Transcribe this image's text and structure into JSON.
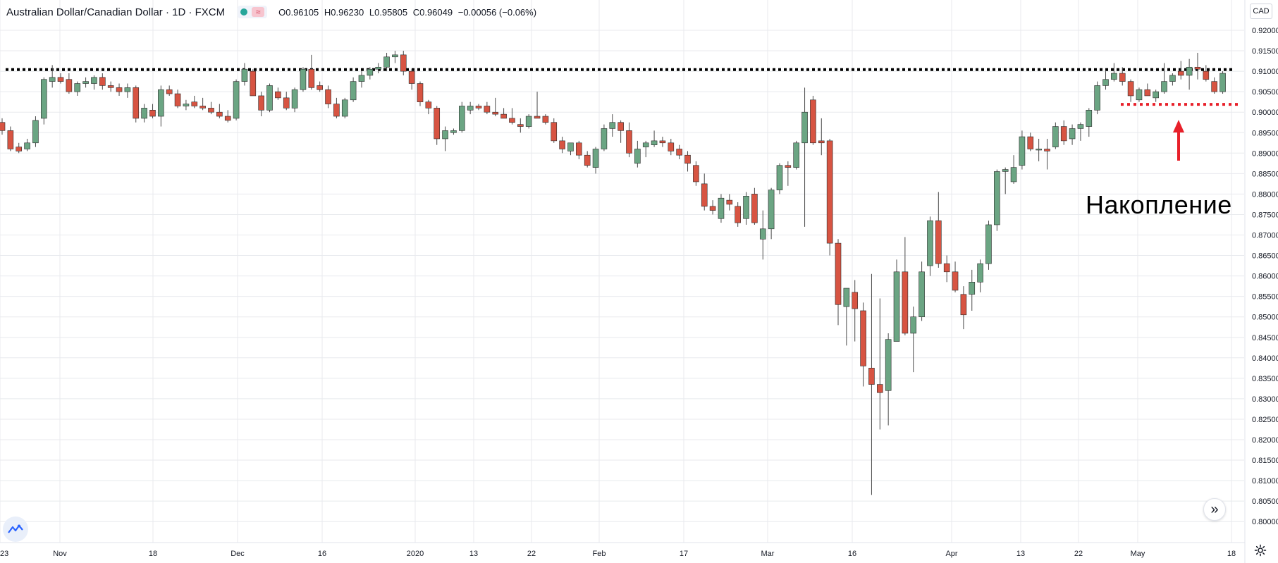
{
  "header": {
    "symbol_title": "Australian Dollar/Canadian Dollar · 1D · FXCM",
    "ohlc": {
      "open": "O0.96105",
      "high": "H0.96230",
      "low": "L0.95805",
      "close": "C0.96049",
      "change": "−0.00056 (−0.06%)"
    }
  },
  "currency_badge": "CAD",
  "annotation": "Накопление",
  "colors": {
    "up": "#6ba583",
    "down": "#d75442",
    "wick": "#4a4a4a",
    "grid": "#e8eaee",
    "resistance": "#000000",
    "support": "#e8202a",
    "arrow": "#e8202a"
  },
  "icons": {
    "logo": "tradingview-logo-icon",
    "scroll": "double-chevron-right-icon",
    "settings": "gear-icon"
  },
  "chart_data": {
    "type": "candlestick",
    "title": "Australian Dollar/Canadian Dollar · 1D · FXCM",
    "ylim": [
      0.797,
      0.926
    ],
    "y_ticks": [
      "0.92000",
      "0.91500",
      "0.91000",
      "0.90500",
      "0.90000",
      "0.89500",
      "0.89000",
      "0.88500",
      "0.88000",
      "0.87500",
      "0.87000",
      "0.86500",
      "0.86000",
      "0.85500",
      "0.85000",
      "0.84500",
      "0.84000",
      "0.83500",
      "0.83000",
      "0.82500",
      "0.82000",
      "0.81500",
      "0.81000",
      "0.80500",
      "0.80000"
    ],
    "x_ticks": [
      "23",
      "Nov",
      "18",
      "Dec",
      "16",
      "2020",
      "13",
      "22",
      "Feb",
      "17",
      "Mar",
      "16",
      "Apr",
      "13",
      "22",
      "May",
      "18"
    ],
    "grid": true,
    "levels": [
      {
        "name": "resistance",
        "value": 0.9104,
        "style": "dotted"
      },
      {
        "name": "support",
        "value": 0.9019,
        "style": "dotted"
      }
    ],
    "candles": [
      {
        "o": 0.8975,
        "h": 0.8985,
        "l": 0.8945,
        "c": 0.8955
      },
      {
        "o": 0.8955,
        "h": 0.8965,
        "l": 0.8905,
        "c": 0.891
      },
      {
        "o": 0.8915,
        "h": 0.8925,
        "l": 0.89,
        "c": 0.8905
      },
      {
        "o": 0.891,
        "h": 0.8935,
        "l": 0.8905,
        "c": 0.8925
      },
      {
        "o": 0.8925,
        "h": 0.899,
        "l": 0.8915,
        "c": 0.898
      },
      {
        "o": 0.8985,
        "h": 0.9085,
        "l": 0.897,
        "c": 0.908
      },
      {
        "o": 0.9075,
        "h": 0.9115,
        "l": 0.906,
        "c": 0.9085
      },
      {
        "o": 0.9085,
        "h": 0.9095,
        "l": 0.907,
        "c": 0.9075
      },
      {
        "o": 0.908,
        "h": 0.9095,
        "l": 0.9045,
        "c": 0.905
      },
      {
        "o": 0.905,
        "h": 0.9075,
        "l": 0.904,
        "c": 0.907
      },
      {
        "o": 0.907,
        "h": 0.9085,
        "l": 0.906,
        "c": 0.9075
      },
      {
        "o": 0.907,
        "h": 0.909,
        "l": 0.9055,
        "c": 0.9085
      },
      {
        "o": 0.9085,
        "h": 0.9095,
        "l": 0.9055,
        "c": 0.9065
      },
      {
        "o": 0.9065,
        "h": 0.9075,
        "l": 0.905,
        "c": 0.906
      },
      {
        "o": 0.906,
        "h": 0.907,
        "l": 0.904,
        "c": 0.905
      },
      {
        "o": 0.905,
        "h": 0.907,
        "l": 0.9035,
        "c": 0.906
      },
      {
        "o": 0.906,
        "h": 0.9065,
        "l": 0.8975,
        "c": 0.8985
      },
      {
        "o": 0.8985,
        "h": 0.902,
        "l": 0.8975,
        "c": 0.901
      },
      {
        "o": 0.9005,
        "h": 0.902,
        "l": 0.8985,
        "c": 0.899
      },
      {
        "o": 0.899,
        "h": 0.9065,
        "l": 0.8965,
        "c": 0.9055
      },
      {
        "o": 0.9055,
        "h": 0.9065,
        "l": 0.904,
        "c": 0.9045
      },
      {
        "o": 0.9045,
        "h": 0.9055,
        "l": 0.901,
        "c": 0.9015
      },
      {
        "o": 0.9015,
        "h": 0.903,
        "l": 0.9005,
        "c": 0.902
      },
      {
        "o": 0.9025,
        "h": 0.904,
        "l": 0.901,
        "c": 0.9015
      },
      {
        "o": 0.9015,
        "h": 0.9035,
        "l": 0.9005,
        "c": 0.901
      },
      {
        "o": 0.901,
        "h": 0.9025,
        "l": 0.8995,
        "c": 0.9
      },
      {
        "o": 0.9,
        "h": 0.902,
        "l": 0.8985,
        "c": 0.899
      },
      {
        "o": 0.899,
        "h": 0.9005,
        "l": 0.8975,
        "c": 0.898
      },
      {
        "o": 0.8985,
        "h": 0.908,
        "l": 0.898,
        "c": 0.9075
      },
      {
        "o": 0.9075,
        "h": 0.912,
        "l": 0.9065,
        "c": 0.9105
      },
      {
        "o": 0.91,
        "h": 0.9105,
        "l": 0.904,
        "c": 0.904
      },
      {
        "o": 0.904,
        "h": 0.905,
        "l": 0.899,
        "c": 0.9005
      },
      {
        "o": 0.9005,
        "h": 0.907,
        "l": 0.9,
        "c": 0.9065
      },
      {
        "o": 0.905,
        "h": 0.906,
        "l": 0.903,
        "c": 0.9035
      },
      {
        "o": 0.9035,
        "h": 0.905,
        "l": 0.9005,
        "c": 0.901
      },
      {
        "o": 0.901,
        "h": 0.906,
        "l": 0.9,
        "c": 0.9055
      },
      {
        "o": 0.9055,
        "h": 0.911,
        "l": 0.905,
        "c": 0.9105
      },
      {
        "o": 0.9105,
        "h": 0.914,
        "l": 0.9055,
        "c": 0.906
      },
      {
        "o": 0.9065,
        "h": 0.9075,
        "l": 0.905,
        "c": 0.9055
      },
      {
        "o": 0.9055,
        "h": 0.9065,
        "l": 0.901,
        "c": 0.902
      },
      {
        "o": 0.902,
        "h": 0.9035,
        "l": 0.8985,
        "c": 0.899
      },
      {
        "o": 0.899,
        "h": 0.9035,
        "l": 0.8985,
        "c": 0.903
      },
      {
        "o": 0.903,
        "h": 0.9085,
        "l": 0.9025,
        "c": 0.9075
      },
      {
        "o": 0.9075,
        "h": 0.91,
        "l": 0.906,
        "c": 0.909
      },
      {
        "o": 0.909,
        "h": 0.911,
        "l": 0.908,
        "c": 0.9105
      },
      {
        "o": 0.9105,
        "h": 0.912,
        "l": 0.9095,
        "c": 0.911
      },
      {
        "o": 0.911,
        "h": 0.9145,
        "l": 0.91,
        "c": 0.9135
      },
      {
        "o": 0.9135,
        "h": 0.915,
        "l": 0.912,
        "c": 0.914
      },
      {
        "o": 0.914,
        "h": 0.915,
        "l": 0.909,
        "c": 0.91
      },
      {
        "o": 0.91,
        "h": 0.9105,
        "l": 0.9055,
        "c": 0.907
      },
      {
        "o": 0.907,
        "h": 0.9075,
        "l": 0.9015,
        "c": 0.9025
      },
      {
        "o": 0.9025,
        "h": 0.903,
        "l": 0.8995,
        "c": 0.901
      },
      {
        "o": 0.901,
        "h": 0.9015,
        "l": 0.892,
        "c": 0.8935
      },
      {
        "o": 0.8935,
        "h": 0.8965,
        "l": 0.8905,
        "c": 0.8955
      },
      {
        "o": 0.895,
        "h": 0.896,
        "l": 0.8945,
        "c": 0.8955
      },
      {
        "o": 0.8955,
        "h": 0.9025,
        "l": 0.895,
        "c": 0.9015
      },
      {
        "o": 0.9005,
        "h": 0.9025,
        "l": 0.8995,
        "c": 0.9015
      },
      {
        "o": 0.9015,
        "h": 0.902,
        "l": 0.9005,
        "c": 0.901
      },
      {
        "o": 0.9015,
        "h": 0.9025,
        "l": 0.8995,
        "c": 0.9
      },
      {
        "o": 0.9,
        "h": 0.9035,
        "l": 0.899,
        "c": 0.8995
      },
      {
        "o": 0.8995,
        "h": 0.901,
        "l": 0.8985,
        "c": 0.8985
      },
      {
        "o": 0.8985,
        "h": 0.901,
        "l": 0.897,
        "c": 0.8975
      },
      {
        "o": 0.897,
        "h": 0.8985,
        "l": 0.895,
        "c": 0.8965
      },
      {
        "o": 0.8965,
        "h": 0.8995,
        "l": 0.896,
        "c": 0.899
      },
      {
        "o": 0.899,
        "h": 0.905,
        "l": 0.8985,
        "c": 0.8985
      },
      {
        "o": 0.899,
        "h": 0.8995,
        "l": 0.897,
        "c": 0.8975
      },
      {
        "o": 0.8975,
        "h": 0.8985,
        "l": 0.8925,
        "c": 0.893
      },
      {
        "o": 0.893,
        "h": 0.894,
        "l": 0.89,
        "c": 0.891
      },
      {
        "o": 0.8905,
        "h": 0.8925,
        "l": 0.8895,
        "c": 0.8925
      },
      {
        "o": 0.8925,
        "h": 0.893,
        "l": 0.8885,
        "c": 0.8895
      },
      {
        "o": 0.8895,
        "h": 0.8905,
        "l": 0.8865,
        "c": 0.887
      },
      {
        "o": 0.8865,
        "h": 0.8915,
        "l": 0.885,
        "c": 0.891
      },
      {
        "o": 0.891,
        "h": 0.897,
        "l": 0.8905,
        "c": 0.896
      },
      {
        "o": 0.896,
        "h": 0.8995,
        "l": 0.894,
        "c": 0.8975
      },
      {
        "o": 0.8975,
        "h": 0.898,
        "l": 0.8925,
        "c": 0.8955
      },
      {
        "o": 0.8955,
        "h": 0.8975,
        "l": 0.889,
        "c": 0.89
      },
      {
        "o": 0.8875,
        "h": 0.893,
        "l": 0.8865,
        "c": 0.891
      },
      {
        "o": 0.8915,
        "h": 0.893,
        "l": 0.889,
        "c": 0.8925
      },
      {
        "o": 0.892,
        "h": 0.8955,
        "l": 0.8915,
        "c": 0.893
      },
      {
        "o": 0.893,
        "h": 0.894,
        "l": 0.8915,
        "c": 0.8925
      },
      {
        "o": 0.8925,
        "h": 0.8935,
        "l": 0.8895,
        "c": 0.8905
      },
      {
        "o": 0.891,
        "h": 0.892,
        "l": 0.8885,
        "c": 0.8895
      },
      {
        "o": 0.8895,
        "h": 0.8905,
        "l": 0.8855,
        "c": 0.8875
      },
      {
        "o": 0.887,
        "h": 0.888,
        "l": 0.882,
        "c": 0.883
      },
      {
        "o": 0.8825,
        "h": 0.885,
        "l": 0.876,
        "c": 0.877
      },
      {
        "o": 0.877,
        "h": 0.8785,
        "l": 0.875,
        "c": 0.876
      },
      {
        "o": 0.874,
        "h": 0.88,
        "l": 0.873,
        "c": 0.879
      },
      {
        "o": 0.8785,
        "h": 0.88,
        "l": 0.876,
        "c": 0.8775
      },
      {
        "o": 0.877,
        "h": 0.878,
        "l": 0.872,
        "c": 0.873
      },
      {
        "o": 0.874,
        "h": 0.8805,
        "l": 0.8725,
        "c": 0.8795
      },
      {
        "o": 0.88,
        "h": 0.8815,
        "l": 0.8725,
        "c": 0.873
      },
      {
        "o": 0.869,
        "h": 0.876,
        "l": 0.864,
        "c": 0.8715
      },
      {
        "o": 0.8715,
        "h": 0.8815,
        "l": 0.869,
        "c": 0.881
      },
      {
        "o": 0.881,
        "h": 0.8875,
        "l": 0.88,
        "c": 0.887
      },
      {
        "o": 0.887,
        "h": 0.888,
        "l": 0.882,
        "c": 0.8865
      },
      {
        "o": 0.8865,
        "h": 0.893,
        "l": 0.886,
        "c": 0.8925
      },
      {
        "o": 0.8925,
        "h": 0.906,
        "l": 0.872,
        "c": 0.9
      },
      {
        "o": 0.903,
        "h": 0.904,
        "l": 0.892,
        "c": 0.8925
      },
      {
        "o": 0.893,
        "h": 0.8985,
        "l": 0.8895,
        "c": 0.8925
      },
      {
        "o": 0.893,
        "h": 0.8935,
        "l": 0.865,
        "c": 0.868
      },
      {
        "o": 0.868,
        "h": 0.869,
        "l": 0.848,
        "c": 0.853
      },
      {
        "o": 0.8525,
        "h": 0.857,
        "l": 0.843,
        "c": 0.857
      },
      {
        "o": 0.856,
        "h": 0.859,
        "l": 0.844,
        "c": 0.852
      },
      {
        "o": 0.8515,
        "h": 0.8535,
        "l": 0.833,
        "c": 0.838
      },
      {
        "o": 0.8375,
        "h": 0.8605,
        "l": 0.8065,
        "c": 0.8335
      },
      {
        "o": 0.8335,
        "h": 0.8545,
        "l": 0.8225,
        "c": 0.8315
      },
      {
        "o": 0.832,
        "h": 0.846,
        "l": 0.8235,
        "c": 0.8445
      },
      {
        "o": 0.844,
        "h": 0.864,
        "l": 0.844,
        "c": 0.861
      },
      {
        "o": 0.861,
        "h": 0.8695,
        "l": 0.8455,
        "c": 0.846
      },
      {
        "o": 0.846,
        "h": 0.8525,
        "l": 0.8365,
        "c": 0.85
      },
      {
        "o": 0.85,
        "h": 0.8635,
        "l": 0.849,
        "c": 0.861
      },
      {
        "o": 0.8625,
        "h": 0.8745,
        "l": 0.86,
        "c": 0.8735
      },
      {
        "o": 0.8735,
        "h": 0.8805,
        "l": 0.862,
        "c": 0.863
      },
      {
        "o": 0.863,
        "h": 0.865,
        "l": 0.8585,
        "c": 0.861
      },
      {
        "o": 0.861,
        "h": 0.8635,
        "l": 0.856,
        "c": 0.8565
      },
      {
        "o": 0.8555,
        "h": 0.8575,
        "l": 0.847,
        "c": 0.8505
      },
      {
        "o": 0.8555,
        "h": 0.8615,
        "l": 0.8515,
        "c": 0.8585
      },
      {
        "o": 0.8585,
        "h": 0.864,
        "l": 0.856,
        "c": 0.863
      },
      {
        "o": 0.863,
        "h": 0.8735,
        "l": 0.8615,
        "c": 0.8725
      },
      {
        "o": 0.8725,
        "h": 0.886,
        "l": 0.871,
        "c": 0.8855
      },
      {
        "o": 0.8855,
        "h": 0.8865,
        "l": 0.88,
        "c": 0.886
      },
      {
        "o": 0.883,
        "h": 0.8895,
        "l": 0.8825,
        "c": 0.8865
      },
      {
        "o": 0.887,
        "h": 0.8955,
        "l": 0.886,
        "c": 0.894
      },
      {
        "o": 0.894,
        "h": 0.895,
        "l": 0.8905,
        "c": 0.891
      },
      {
        "o": 0.891,
        "h": 0.8935,
        "l": 0.888,
        "c": 0.891
      },
      {
        "o": 0.891,
        "h": 0.8935,
        "l": 0.886,
        "c": 0.8905
      },
      {
        "o": 0.8915,
        "h": 0.8975,
        "l": 0.891,
        "c": 0.8965
      },
      {
        "o": 0.8965,
        "h": 0.898,
        "l": 0.892,
        "c": 0.893
      },
      {
        "o": 0.8935,
        "h": 0.897,
        "l": 0.892,
        "c": 0.896
      },
      {
        "o": 0.896,
        "h": 0.8975,
        "l": 0.893,
        "c": 0.897
      },
      {
        "o": 0.8965,
        "h": 0.901,
        "l": 0.894,
        "c": 0.9005
      },
      {
        "o": 0.9005,
        "h": 0.9075,
        "l": 0.8995,
        "c": 0.9065
      },
      {
        "o": 0.9065,
        "h": 0.91,
        "l": 0.9055,
        "c": 0.908
      },
      {
        "o": 0.908,
        "h": 0.912,
        "l": 0.9075,
        "c": 0.9095
      },
      {
        "o": 0.9095,
        "h": 0.911,
        "l": 0.9065,
        "c": 0.9075
      },
      {
        "o": 0.9075,
        "h": 0.908,
        "l": 0.9025,
        "c": 0.904
      },
      {
        "o": 0.903,
        "h": 0.906,
        "l": 0.9025,
        "c": 0.9055
      },
      {
        "o": 0.9055,
        "h": 0.907,
        "l": 0.904,
        "c": 0.904
      },
      {
        "o": 0.9035,
        "h": 0.9055,
        "l": 0.9025,
        "c": 0.905
      },
      {
        "o": 0.905,
        "h": 0.912,
        "l": 0.9045,
        "c": 0.9075
      },
      {
        "o": 0.9075,
        "h": 0.9095,
        "l": 0.9065,
        "c": 0.909
      },
      {
        "o": 0.91,
        "h": 0.9125,
        "l": 0.908,
        "c": 0.909
      },
      {
        "o": 0.909,
        "h": 0.913,
        "l": 0.9055,
        "c": 0.911
      },
      {
        "o": 0.911,
        "h": 0.9145,
        "l": 0.908,
        "c": 0.9105
      },
      {
        "o": 0.91,
        "h": 0.9115,
        "l": 0.9075,
        "c": 0.908
      },
      {
        "o": 0.9075,
        "h": 0.9085,
        "l": 0.9045,
        "c": 0.905
      },
      {
        "o": 0.905,
        "h": 0.91,
        "l": 0.9045,
        "c": 0.9095
      }
    ]
  }
}
